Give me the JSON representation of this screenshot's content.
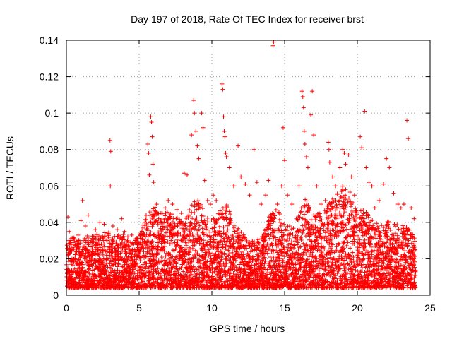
{
  "chart_data": {
    "type": "scatter",
    "title": "Day 197 of 2018, Rate Of TEC Index for receiver brst",
    "xlabel": "GPS time / hours",
    "ylabel": "ROTI / TECUs",
    "xlim": [
      0,
      25
    ],
    "ylim": [
      0,
      0.14
    ],
    "xticks": [
      0,
      5,
      10,
      15,
      20,
      25
    ],
    "yticks": [
      0,
      0.02,
      0.04,
      0.06,
      0.08,
      0.1,
      0.12,
      0.14
    ],
    "xtick_labels": [
      "0",
      "5",
      "10",
      "15",
      "20",
      "25"
    ],
    "ytick_labels": [
      "0",
      "0.02",
      "0.04",
      "0.06",
      "0.08",
      "0.1",
      "0.12",
      "0.14"
    ],
    "grid": true,
    "marker": "+",
    "color": "#ff0000",
    "series": [
      {
        "points": [
          [
            0.1,
            0.043
          ],
          [
            0.2,
            0.035
          ],
          [
            0.3,
            0.028
          ],
          [
            0.5,
            0.031
          ],
          [
            0.6,
            0.02
          ],
          [
            0.8,
            0.033
          ],
          [
            1.0,
            0.041
          ],
          [
            1.1,
            0.052
          ],
          [
            1.3,
            0.038
          ],
          [
            1.5,
            0.044
          ],
          [
            1.7,
            0.03
          ],
          [
            2.0,
            0.036
          ],
          [
            2.3,
            0.04
          ],
          [
            2.6,
            0.039
          ],
          [
            2.9,
            0.034
          ],
          [
            3.0,
            0.085
          ],
          [
            3.05,
            0.079
          ],
          [
            3.02,
            0.06
          ],
          [
            3.2,
            0.038
          ],
          [
            3.5,
            0.036
          ],
          [
            3.8,
            0.042
          ],
          [
            4.0,
            0.035
          ],
          [
            4.2,
            0.03
          ],
          [
            4.5,
            0.033
          ],
          [
            4.8,
            0.03
          ],
          [
            5.0,
            0.028
          ],
          [
            5.2,
            0.032
          ],
          [
            5.4,
            0.04
          ],
          [
            5.6,
            0.083
          ],
          [
            5.65,
            0.078
          ],
          [
            5.7,
            0.066
          ],
          [
            5.8,
            0.098
          ],
          [
            5.85,
            0.095
          ],
          [
            5.9,
            0.087
          ],
          [
            5.95,
            0.072
          ],
          [
            6.0,
            0.062
          ],
          [
            6.2,
            0.05
          ],
          [
            6.5,
            0.045
          ],
          [
            6.8,
            0.048
          ],
          [
            7.0,
            0.052
          ],
          [
            7.3,
            0.05
          ],
          [
            7.6,
            0.047
          ],
          [
            7.9,
            0.045
          ],
          [
            8.1,
            0.067
          ],
          [
            8.3,
            0.066
          ],
          [
            8.6,
            0.088
          ],
          [
            8.75,
            0.107
          ],
          [
            8.8,
            0.1
          ],
          [
            8.9,
            0.09
          ],
          [
            9.0,
            0.082
          ],
          [
            9.1,
            0.075
          ],
          [
            9.3,
            0.1
          ],
          [
            9.4,
            0.092
          ],
          [
            9.5,
            0.063
          ],
          [
            9.7,
            0.052
          ],
          [
            9.9,
            0.05
          ],
          [
            10.1,
            0.055
          ],
          [
            10.3,
            0.052
          ],
          [
            10.7,
            0.116
          ],
          [
            10.75,
            0.113
          ],
          [
            10.8,
            0.098
          ],
          [
            10.85,
            0.09
          ],
          [
            10.9,
            0.087
          ],
          [
            10.95,
            0.078
          ],
          [
            11.0,
            0.076
          ],
          [
            11.2,
            0.07
          ],
          [
            11.5,
            0.06
          ],
          [
            11.8,
            0.082
          ],
          [
            12.0,
            0.065
          ],
          [
            12.3,
            0.061
          ],
          [
            12.6,
            0.055
          ],
          [
            12.9,
            0.08
          ],
          [
            13.1,
            0.062
          ],
          [
            13.4,
            0.05
          ],
          [
            13.7,
            0.055
          ],
          [
            13.9,
            0.063
          ],
          [
            14.2,
            0.137
          ],
          [
            14.25,
            0.139
          ],
          [
            14.5,
            0.05
          ],
          [
            14.8,
            0.06
          ],
          [
            14.9,
            0.092
          ],
          [
            15.0,
            0.074
          ],
          [
            15.2,
            0.055
          ],
          [
            15.5,
            0.05
          ],
          [
            15.8,
            0.042
          ],
          [
            16.0,
            0.06
          ],
          [
            16.2,
            0.112
          ],
          [
            16.25,
            0.109
          ],
          [
            16.3,
            0.103
          ],
          [
            16.35,
            0.09
          ],
          [
            16.4,
            0.083
          ],
          [
            16.5,
            0.076
          ],
          [
            16.6,
            0.07
          ],
          [
            16.8,
            0.099
          ],
          [
            16.9,
            0.112
          ],
          [
            17.0,
            0.088
          ],
          [
            17.2,
            0.06
          ],
          [
            17.5,
            0.05
          ],
          [
            17.8,
            0.052
          ],
          [
            18.0,
            0.084
          ],
          [
            18.05,
            0.08
          ],
          [
            18.1,
            0.073
          ],
          [
            18.3,
            0.065
          ],
          [
            18.5,
            0.06
          ],
          [
            18.8,
            0.07
          ],
          [
            19.0,
            0.08
          ],
          [
            19.1,
            0.078
          ],
          [
            19.2,
            0.072
          ],
          [
            19.4,
            0.077
          ],
          [
            19.6,
            0.065
          ],
          [
            19.8,
            0.055
          ],
          [
            20.2,
            0.087
          ],
          [
            20.3,
            0.081
          ],
          [
            20.5,
            0.101
          ],
          [
            20.6,
            0.07
          ],
          [
            20.8,
            0.062
          ],
          [
            21.0,
            0.06
          ],
          [
            21.2,
            0.048
          ],
          [
            21.5,
            0.052
          ],
          [
            21.8,
            0.061
          ],
          [
            22.0,
            0.075
          ],
          [
            22.2,
            0.07
          ],
          [
            22.5,
            0.056
          ],
          [
            22.8,
            0.05
          ],
          [
            23.0,
            0.048
          ],
          [
            23.2,
            0.05
          ],
          [
            23.4,
            0.096
          ],
          [
            23.5,
            0.086
          ],
          [
            23.7,
            0.048
          ],
          [
            23.9,
            0.042
          ]
        ],
        "dense_band": [
          [
            0.0,
            0.004,
            0.03
          ],
          [
            0.5,
            0.004,
            0.032
          ],
          [
            1.0,
            0.004,
            0.03
          ],
          [
            1.5,
            0.004,
            0.033
          ],
          [
            2.0,
            0.004,
            0.035
          ],
          [
            2.5,
            0.004,
            0.034
          ],
          [
            3.0,
            0.004,
            0.036
          ],
          [
            3.5,
            0.004,
            0.033
          ],
          [
            4.0,
            0.004,
            0.034
          ],
          [
            4.5,
            0.004,
            0.03
          ],
          [
            5.0,
            0.004,
            0.032
          ],
          [
            5.5,
            0.004,
            0.045
          ],
          [
            6.0,
            0.004,
            0.05
          ],
          [
            6.5,
            0.004,
            0.045
          ],
          [
            7.0,
            0.004,
            0.046
          ],
          [
            7.5,
            0.004,
            0.044
          ],
          [
            8.0,
            0.004,
            0.04
          ],
          [
            8.5,
            0.004,
            0.048
          ],
          [
            9.0,
            0.004,
            0.055
          ],
          [
            9.5,
            0.004,
            0.045
          ],
          [
            10.0,
            0.004,
            0.042
          ],
          [
            10.5,
            0.004,
            0.046
          ],
          [
            11.0,
            0.004,
            0.05
          ],
          [
            11.5,
            0.004,
            0.04
          ],
          [
            12.0,
            0.004,
            0.035
          ],
          [
            12.5,
            0.004,
            0.03
          ],
          [
            13.0,
            0.004,
            0.03
          ],
          [
            13.5,
            0.004,
            0.033
          ],
          [
            14.0,
            0.004,
            0.045
          ],
          [
            14.5,
            0.004,
            0.048
          ],
          [
            15.0,
            0.004,
            0.04
          ],
          [
            15.5,
            0.004,
            0.038
          ],
          [
            16.0,
            0.004,
            0.045
          ],
          [
            16.5,
            0.004,
            0.055
          ],
          [
            17.0,
            0.004,
            0.045
          ],
          [
            17.5,
            0.004,
            0.046
          ],
          [
            18.0,
            0.004,
            0.05
          ],
          [
            18.5,
            0.004,
            0.055
          ],
          [
            19.0,
            0.004,
            0.06
          ],
          [
            19.5,
            0.004,
            0.058
          ],
          [
            20.0,
            0.004,
            0.045
          ],
          [
            20.5,
            0.004,
            0.048
          ],
          [
            21.0,
            0.004,
            0.042
          ],
          [
            21.5,
            0.004,
            0.04
          ],
          [
            22.0,
            0.004,
            0.042
          ],
          [
            22.5,
            0.004,
            0.04
          ],
          [
            23.0,
            0.004,
            0.038
          ],
          [
            23.5,
            0.004,
            0.04
          ],
          [
            24.0,
            0.004,
            0.03
          ]
        ]
      }
    ]
  }
}
